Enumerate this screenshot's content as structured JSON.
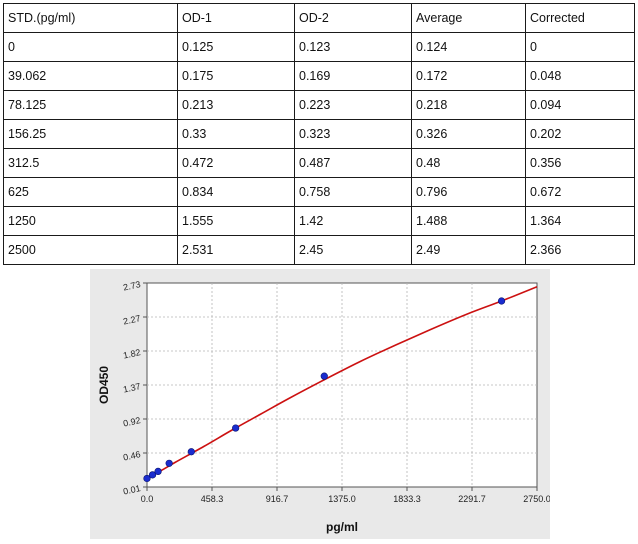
{
  "table": {
    "headers": [
      "STD.(pg/ml)",
      "OD-1",
      "OD-2",
      "Average",
      "Corrected"
    ],
    "rows": [
      [
        "0",
        "0.125",
        "0.123",
        "0.124",
        "0"
      ],
      [
        "39.062",
        "0.175",
        "0.169",
        "0.172",
        "0.048"
      ],
      [
        "78.125",
        "0.213",
        "0.223",
        "0.218",
        "0.094"
      ],
      [
        "156.25",
        "0.33",
        "0.323",
        "0.326",
        "0.202"
      ],
      [
        "312.5",
        "0.472",
        "0.487",
        "0.48",
        "0.356"
      ],
      [
        "625",
        "0.834",
        "0.758",
        "0.796",
        "0.672"
      ],
      [
        "1250",
        "1.555",
        "1.42",
        "1.488",
        "1.364"
      ],
      [
        "2500",
        "2.531",
        "2.45",
        "2.49",
        "2.366"
      ]
    ]
  },
  "chart_data": {
    "type": "scatter",
    "xlabel": "pg/ml",
    "ylabel": "OD450",
    "xlim": [
      0,
      2750
    ],
    "ylim": [
      0.01,
      2.73
    ],
    "xticks": [
      "0.0",
      "458.3",
      "916.7",
      "1375.0",
      "1833.3",
      "2291.7",
      "2750.0"
    ],
    "yticks": [
      "0.01",
      "0.46",
      "0.92",
      "1.37",
      "1.82",
      "2.27",
      "2.73"
    ],
    "grid": true,
    "points": [
      {
        "x": 0,
        "y": 0.124
      },
      {
        "x": 39.062,
        "y": 0.172
      },
      {
        "x": 78.125,
        "y": 0.218
      },
      {
        "x": 156.25,
        "y": 0.326
      },
      {
        "x": 312.5,
        "y": 0.48
      },
      {
        "x": 625,
        "y": 0.796
      },
      {
        "x": 1250,
        "y": 1.488
      },
      {
        "x": 2500,
        "y": 2.49
      }
    ],
    "fit_curve": {
      "x": [
        0,
        100,
        200,
        400,
        600,
        800,
        1000,
        1250,
        1500,
        1750,
        2000,
        2250,
        2500,
        2750
      ],
      "y": [
        0.13,
        0.23,
        0.34,
        0.55,
        0.77,
        0.98,
        1.19,
        1.44,
        1.68,
        1.9,
        2.11,
        2.31,
        2.49,
        2.68
      ]
    },
    "colors": {
      "curve": "#cc1111",
      "point": "#1a2ccf",
      "background": "#e9e9e9",
      "plot_area": "#ffffff"
    }
  }
}
